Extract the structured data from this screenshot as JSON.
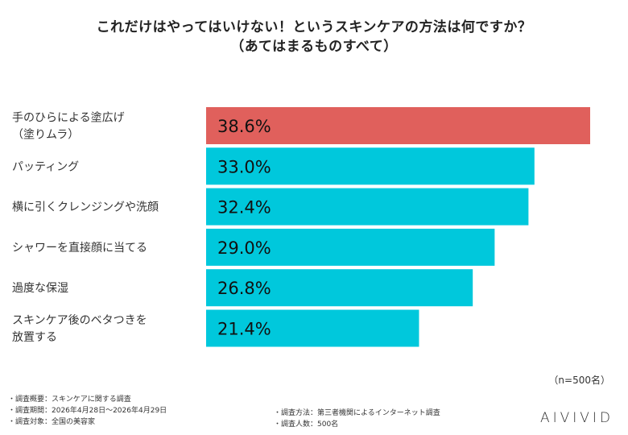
{
  "title": {
    "line1": "これだけはやってはいけない！というスキンケアの方法は何ですか？",
    "line2": "（あてはまるものすべて）"
  },
  "chart_data": {
    "type": "bar",
    "orientation": "horizontal",
    "categories": [
      [
        "手のひらによる塗広げ",
        "（塗りムラ）"
      ],
      [
        "パッティング"
      ],
      [
        "横に引くクレンジングや洗顔"
      ],
      [
        "シャワーを直接顔に当てる"
      ],
      [
        "過度な保湿"
      ],
      [
        "スキンケア後のベタつきを",
        "放置する"
      ]
    ],
    "values": [
      38.6,
      33.0,
      32.4,
      29.0,
      26.8,
      21.4
    ],
    "value_labels": [
      "38.6%",
      "33.0%",
      "32.4%",
      "29.0%",
      "26.8%",
      "21.4%"
    ],
    "highlight_color": "#e0605c",
    "bar_color": "#00c8dc",
    "xlim": [
      0,
      38.6
    ],
    "grid": false
  },
  "sample_note": "（n=500名）",
  "footer": {
    "left": [
      "・調査概要：スキンケアに関する調査",
      "・調査期間：2026年4月28日〜2026年4月29日",
      "・調査対象：全国の美容家"
    ],
    "right": [
      "・調査方法：第三者機関によるインターネット調査",
      "・調査人数：500名"
    ]
  },
  "brand": "AIVIVID"
}
